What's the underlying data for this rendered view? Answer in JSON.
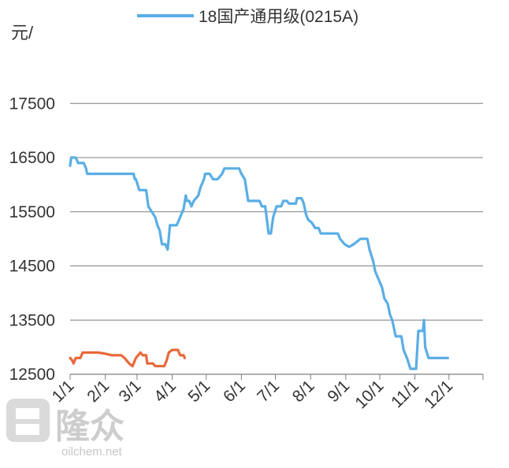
{
  "chart_data": {
    "type": "line",
    "ylabel": "元/",
    "ylim": [
      12500,
      18100
    ],
    "yticks": [
      17500,
      16500,
      15500,
      14500,
      13500,
      12500
    ],
    "x_axis_range": [
      "1/1",
      "12/31"
    ],
    "xticks": [
      "1/1",
      "2/1",
      "3/1",
      "4/1",
      "5/1",
      "6/1",
      "7/1",
      "8/1",
      "9/1",
      "10/1",
      "11/1",
      "12/1"
    ],
    "grid": true,
    "legend_position": "top",
    "series": [
      {
        "name": "18国产通用级(0215A)",
        "color": "#5aaee6",
        "points": [
          [
            "1/1",
            16350
          ],
          [
            "1/2",
            16500
          ],
          [
            "1/6",
            16500
          ],
          [
            "1/8",
            16400
          ],
          [
            "1/13",
            16400
          ],
          [
            "1/15",
            16300
          ],
          [
            "1/16",
            16200
          ],
          [
            "2/1",
            16200
          ],
          [
            "2/26",
            16200
          ],
          [
            "2/27",
            16100
          ],
          [
            "2/28",
            16100
          ],
          [
            "3/3",
            15900
          ],
          [
            "3/9",
            15900
          ],
          [
            "3/11",
            15600
          ],
          [
            "3/14",
            15500
          ],
          [
            "3/17",
            15400
          ],
          [
            "3/19",
            15250
          ],
          [
            "3/21",
            15150
          ],
          [
            "3/23",
            14900
          ],
          [
            "3/26",
            14900
          ],
          [
            "3/28",
            14800
          ],
          [
            "3/30",
            15250
          ],
          [
            "4/5",
            15250
          ],
          [
            "4/8",
            15400
          ],
          [
            "4/11",
            15550
          ],
          [
            "4/13",
            15800
          ],
          [
            "4/14",
            15700
          ],
          [
            "4/16",
            15700
          ],
          [
            "4/18",
            15600
          ],
          [
            "4/20",
            15700
          ],
          [
            "4/24",
            15800
          ],
          [
            "4/26",
            15950
          ],
          [
            "4/29",
            16100
          ],
          [
            "4/30",
            16200
          ],
          [
            "5/4",
            16200
          ],
          [
            "5/7",
            16100
          ],
          [
            "5/11",
            16100
          ],
          [
            "5/15",
            16200
          ],
          [
            "5/17",
            16300
          ],
          [
            "5/30",
            16300
          ],
          [
            "6/1",
            16200
          ],
          [
            "6/4",
            16100
          ],
          [
            "6/7",
            15700
          ],
          [
            "6/10",
            15700
          ],
          [
            "6/17",
            15700
          ],
          [
            "6/19",
            15600
          ],
          [
            "6/22",
            15600
          ],
          [
            "6/25",
            15100
          ],
          [
            "6/27",
            15100
          ],
          [
            "6/29",
            15400
          ],
          [
            "7/2",
            15600
          ],
          [
            "7/6",
            15600
          ],
          [
            "7/8",
            15700
          ],
          [
            "7/11",
            15700
          ],
          [
            "7/13",
            15650
          ],
          [
            "7/19",
            15650
          ],
          [
            "7/20",
            15750
          ],
          [
            "7/24",
            15750
          ],
          [
            "7/26",
            15650
          ],
          [
            "7/28",
            15450
          ],
          [
            "7/30",
            15350
          ],
          [
            "8/2",
            15300
          ],
          [
            "8/5",
            15200
          ],
          [
            "8/8",
            15200
          ],
          [
            "8/10",
            15100
          ],
          [
            "8/25",
            15100
          ],
          [
            "8/27",
            15000
          ],
          [
            "8/31",
            14900
          ],
          [
            "9/4",
            14850
          ],
          [
            "9/8",
            14900
          ],
          [
            "9/11",
            14950
          ],
          [
            "9/14",
            15000
          ],
          [
            "9/20",
            15000
          ],
          [
            "9/22",
            14800
          ],
          [
            "9/25",
            14600
          ],
          [
            "9/27",
            14400
          ],
          [
            "9/30",
            14250
          ],
          [
            "10/3",
            14100
          ],
          [
            "10/5",
            13900
          ],
          [
            "10/8",
            13800
          ],
          [
            "10/10",
            13600
          ],
          [
            "10/12",
            13500
          ],
          [
            "10/15",
            13200
          ],
          [
            "10/20",
            13200
          ],
          [
            "10/22",
            12950
          ],
          [
            "10/25",
            12800
          ],
          [
            "10/28",
            12600
          ],
          [
            "11/2",
            12600
          ],
          [
            "11/4",
            13300
          ],
          [
            "11/8",
            13300
          ],
          [
            "11/9",
            13500
          ],
          [
            "11/10",
            13000
          ],
          [
            "11/13",
            12800
          ],
          [
            "11/30",
            12800
          ]
        ]
      },
      {
        "name": "",
        "color": "#e8693a",
        "points": [
          [
            "1/1",
            12800
          ],
          [
            "1/3",
            12750
          ],
          [
            "1/4",
            12700
          ],
          [
            "1/6",
            12800
          ],
          [
            "1/10",
            12800
          ],
          [
            "1/12",
            12900
          ],
          [
            "1/26",
            12900
          ],
          [
            "2/1",
            12880
          ],
          [
            "2/7",
            12850
          ],
          [
            "2/15",
            12850
          ],
          [
            "2/18",
            12800
          ],
          [
            "2/22",
            12700
          ],
          [
            "2/25",
            12650
          ],
          [
            "2/26",
            12700
          ],
          [
            "2/28",
            12800
          ],
          [
            "3/2",
            12850
          ],
          [
            "3/4",
            12900
          ],
          [
            "3/6",
            12850
          ],
          [
            "3/9",
            12850
          ],
          [
            "3/10",
            12700
          ],
          [
            "3/15",
            12700
          ],
          [
            "3/17",
            12650
          ],
          [
            "3/25",
            12650
          ],
          [
            "3/27",
            12750
          ],
          [
            "3/29",
            12900
          ],
          [
            "4/1",
            12950
          ],
          [
            "4/6",
            12950
          ],
          [
            "4/8",
            12850
          ],
          [
            "4/11",
            12850
          ],
          [
            "4/12",
            12800
          ]
        ]
      }
    ]
  },
  "legend": {
    "label": "18国产通用级(0215A)"
  },
  "watermark": {
    "brand": "隆众",
    "site": "oilchem.net"
  }
}
